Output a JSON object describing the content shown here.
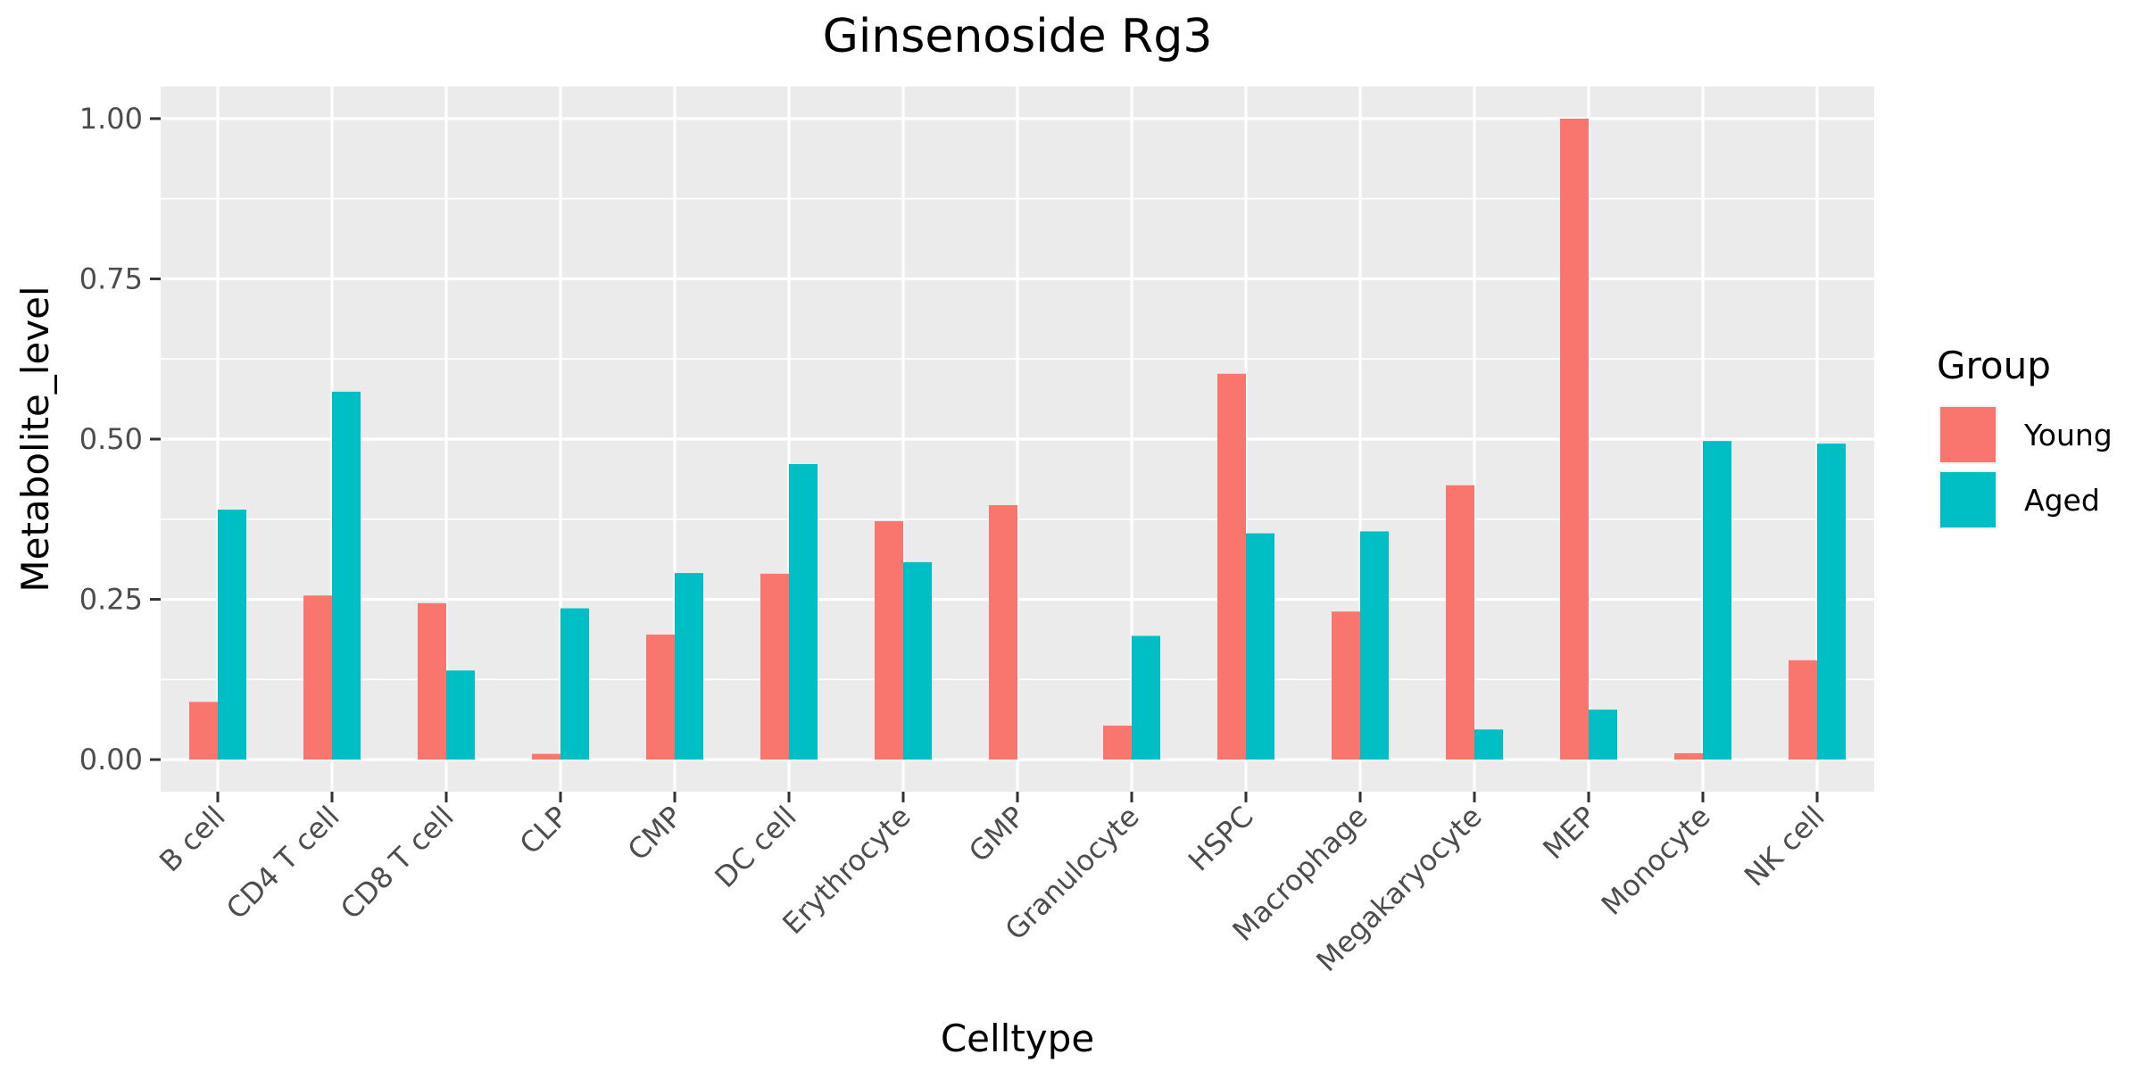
{
  "chart_data": {
    "type": "bar",
    "title": "Ginsenoside Rg3",
    "xlabel": "Celltype",
    "ylabel": "Metabolite_level",
    "categories": [
      "B cell",
      "CD4 T cell",
      "CD8 T cell",
      "CLP",
      "CMP",
      "DC cell",
      "Erythrocyte",
      "GMP",
      "Granulocyte",
      "HSPC",
      "Macrophage",
      "Megakaryocyte",
      "MEP",
      "Monocyte",
      "NK cell"
    ],
    "series": [
      {
        "name": "Young",
        "color": "#F8766D",
        "values": [
          0.09,
          0.256,
          0.244,
          0.009,
          0.195,
          0.29,
          0.372,
          0.397,
          0.053,
          0.602,
          0.231,
          0.428,
          1.0,
          0.01,
          0.155
        ]
      },
      {
        "name": "Aged",
        "color": "#00BFC4",
        "values": [
          0.39,
          0.574,
          0.139,
          0.236,
          0.291,
          0.461,
          0.308,
          0.0,
          0.193,
          0.353,
          0.356,
          0.047,
          0.078,
          0.497,
          0.493
        ]
      }
    ],
    "ylim": [
      -0.05,
      1.05
    ],
    "yticks": [
      0,
      0.25,
      0.5,
      0.75,
      1.0
    ],
    "ytick_labels": [
      "0.00",
      "0.25",
      "0.50",
      "0.75",
      "1.00"
    ],
    "grid": true,
    "panel_background": "#EBEBEB",
    "grid_color": "#FFFFFF",
    "legend": {
      "title": "Group",
      "position": "right"
    }
  }
}
